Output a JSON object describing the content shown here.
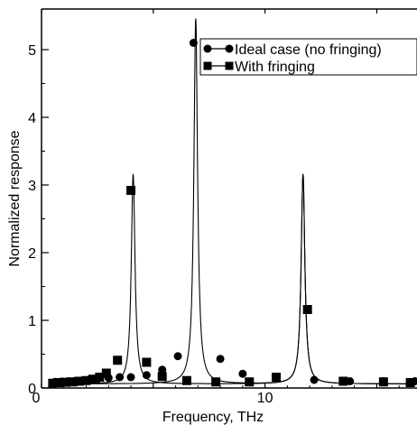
{
  "chart_data": {
    "type": "line",
    "title": "",
    "xlabel": "Frequency, THz",
    "ylabel": "Normalized response",
    "xlim": [
      0,
      16.8
    ],
    "ylim": [
      0,
      5.6
    ],
    "x_ticks": [
      0,
      10
    ],
    "y_ticks": [
      0,
      1,
      2,
      3,
      4,
      5
    ],
    "grid": false,
    "legend": "top-right",
    "series": [
      {
        "name": "Ideal case (no fringing)",
        "marker": "circle",
        "color": "#000000",
        "peaks": [
          {
            "f0": 6.9,
            "height": 5.4,
            "gamma": 0.1
          },
          {
            "f0": 11.7,
            "height": 3.1,
            "gamma": 0.1
          }
        ],
        "baseline": 0.06,
        "points": [
          {
            "x": 0.6,
            "y": 0.09
          },
          {
            "x": 0.9,
            "y": 0.095
          },
          {
            "x": 1.2,
            "y": 0.1
          },
          {
            "x": 1.5,
            "y": 0.105
          },
          {
            "x": 1.8,
            "y": 0.11
          },
          {
            "x": 2.1,
            "y": 0.12
          },
          {
            "x": 2.5,
            "y": 0.13
          },
          {
            "x": 3.0,
            "y": 0.15
          },
          {
            "x": 3.5,
            "y": 0.16
          },
          {
            "x": 4.0,
            "y": 0.16
          },
          {
            "x": 4.7,
            "y": 0.19
          },
          {
            "x": 5.4,
            "y": 0.27
          },
          {
            "x": 6.1,
            "y": 0.47
          },
          {
            "x": 6.8,
            "y": 5.1
          },
          {
            "x": 8.0,
            "y": 0.43
          },
          {
            "x": 9.0,
            "y": 0.21
          },
          {
            "x": 10.5,
            "y": 0.15
          },
          {
            "x": 12.2,
            "y": 0.12
          },
          {
            "x": 13.8,
            "y": 0.1
          },
          {
            "x": 15.3,
            "y": 0.1
          },
          {
            "x": 16.7,
            "y": 0.1
          }
        ]
      },
      {
        "name": "With  fringing",
        "marker": "square",
        "color": "#000000",
        "peaks": [
          {
            "f0": 4.1,
            "height": 3.1,
            "gamma": 0.1
          },
          {
            "f0": 11.7,
            "height": 3.1,
            "gamma": 0.1
          }
        ],
        "baseline": 0.06,
        "points": [
          {
            "x": 0.5,
            "y": 0.07
          },
          {
            "x": 0.8,
            "y": 0.08
          },
          {
            "x": 1.1,
            "y": 0.085
          },
          {
            "x": 1.4,
            "y": 0.09
          },
          {
            "x": 1.7,
            "y": 0.1
          },
          {
            "x": 2.0,
            "y": 0.11
          },
          {
            "x": 2.3,
            "y": 0.13
          },
          {
            "x": 2.6,
            "y": 0.16
          },
          {
            "x": 2.9,
            "y": 0.22
          },
          {
            "x": 3.4,
            "y": 0.41
          },
          {
            "x": 4.0,
            "y": 2.92
          },
          {
            "x": 4.7,
            "y": 0.38
          },
          {
            "x": 5.4,
            "y": 0.17
          },
          {
            "x": 6.5,
            "y": 0.11
          },
          {
            "x": 7.8,
            "y": 0.09
          },
          {
            "x": 9.3,
            "y": 0.09
          },
          {
            "x": 10.5,
            "y": 0.16
          },
          {
            "x": 11.9,
            "y": 1.16
          },
          {
            "x": 13.5,
            "y": 0.1
          },
          {
            "x": 15.3,
            "y": 0.09
          },
          {
            "x": 16.5,
            "y": 0.08
          }
        ]
      }
    ]
  }
}
